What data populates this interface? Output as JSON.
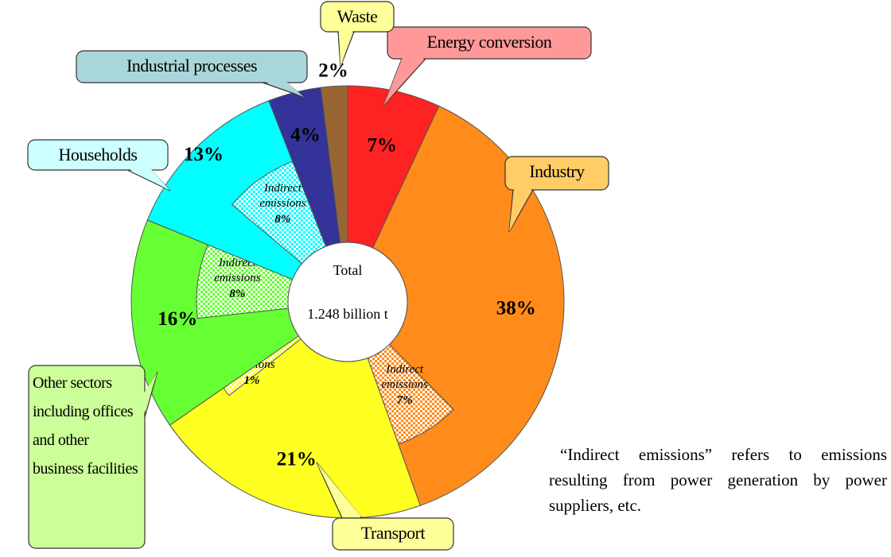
{
  "chart_data": {
    "type": "pie",
    "donut": true,
    "categories": [
      "Energy conversion",
      "Industry",
      "Transport",
      "Other sectors including offices and other business facilities",
      "Households",
      "Industrial processes",
      "Waste"
    ],
    "values": [
      7,
      38,
      21,
      16,
      13,
      4,
      2
    ],
    "value_labels": [
      "7%",
      "38%",
      "21%",
      "16%",
      "13%",
      "4%",
      "2%"
    ],
    "colors": [
      "#ff2222",
      "#ff8c1a",
      "#ffff22",
      "#66ff33",
      "#00ffff",
      "#333399",
      "#996633"
    ],
    "indirect": {
      "label": "Indirect emissions",
      "values": [
        null,
        7,
        1,
        8,
        8,
        null,
        null
      ],
      "value_labels": [
        null,
        "7%",
        "1%",
        "8%",
        "8%",
        null,
        null
      ]
    },
    "center_label": [
      "Total",
      "1.248 billion t"
    ],
    "note": "“Indirect emissions” refers to emissions resulting from power generation by power suppliers, etc."
  }
}
